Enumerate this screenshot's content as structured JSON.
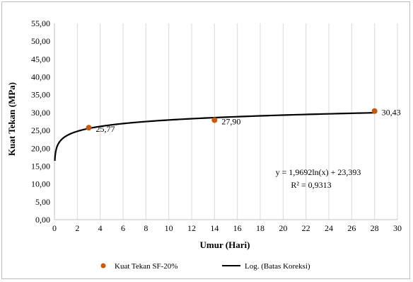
{
  "chart_data": {
    "type": "scatter",
    "xlabel": "Umur (Hari)",
    "ylabel": "Kuat Tekan (MPa)",
    "xlim": [
      0,
      30
    ],
    "ylim": [
      0,
      55
    ],
    "x_ticks": [
      "0",
      "2",
      "4",
      "6",
      "8",
      "10",
      "12",
      "14",
      "16",
      "18",
      "20",
      "22",
      "24",
      "26",
      "28",
      "30"
    ],
    "y_ticks": [
      "0,00",
      "5,00",
      "10,00",
      "15,00",
      "20,00",
      "25,00",
      "30,00",
      "35,00",
      "40,00",
      "45,00",
      "50,00",
      "55,00"
    ],
    "grid": "vertical",
    "series": [
      {
        "name": "Kuat Tekan SF-20%",
        "kind": "scatter",
        "color": "#c55a11",
        "points": [
          {
            "x": 3,
            "y": 25.77,
            "label": "25,77"
          },
          {
            "x": 14,
            "y": 27.9,
            "label": "27,90"
          },
          {
            "x": 28,
            "y": 30.43,
            "label": "30,43"
          }
        ]
      },
      {
        "name": "Log. (Batas Koreksi)",
        "kind": "trendline",
        "color": "#000000",
        "model": "log",
        "a": 1.9692,
        "b": 23.393
      }
    ],
    "annotations": {
      "equation": "y = 1,9692ln(x) + 23,393",
      "r2": "R² = 0,9313"
    },
    "legend": {
      "position": "bottom",
      "items": [
        "Kuat Tekan SF-20%",
        "Log. (Batas Koreksi)"
      ]
    }
  }
}
